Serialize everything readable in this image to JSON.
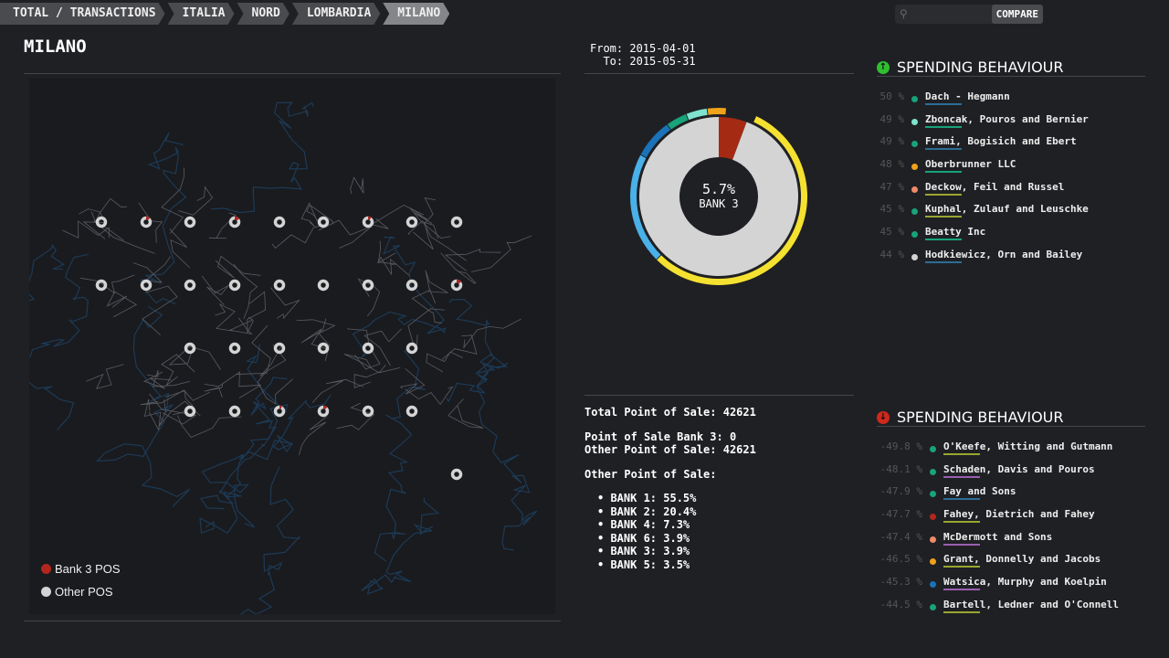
{
  "breadcrumb": [
    "TOTAL / TRANSACTIONS",
    "ITALIA",
    "NORD",
    "LOMBARDIA",
    "MILANO"
  ],
  "search": {
    "placeholder": "",
    "compare_label": "COMPARE",
    "icon": "search-icon"
  },
  "page_title": "MILANO",
  "date_range": {
    "from_label": "From:",
    "from": "2015-04-01",
    "to_label": "To:",
    "to": "2015-05-31"
  },
  "map": {
    "legend": [
      {
        "label": "Bank 3 POS",
        "color": "#b3261e"
      },
      {
        "label": "Other POS",
        "color": "#d4d4d4"
      }
    ]
  },
  "donut": {
    "center_value": "5.7%",
    "center_label": "BANK 3",
    "share": 5.7,
    "inner_colors": {
      "highlight": "#a52a14",
      "rest": "#d4d4d4"
    },
    "outer": [
      {
        "bank": "BANK 1",
        "value": 55.5,
        "color": "#f5e130"
      },
      {
        "bank": "BANK 2",
        "value": 20.4,
        "color": "#4ab0e8"
      },
      {
        "bank": "BANK 4",
        "value": 7.3,
        "color": "#1a72b8"
      },
      {
        "bank": "BANK 6",
        "value": 3.9,
        "color": "#18a37a"
      },
      {
        "bank": "BANK 3",
        "value": 3.9,
        "color": "#7fe3cf"
      },
      {
        "bank": "BANK 5",
        "value": 3.5,
        "color": "#f0a21b"
      }
    ]
  },
  "stats": {
    "total": "Total Point of Sale: 42621",
    "bank3": "Point of Sale Bank 3: 0",
    "other": "Other Point of Sale: 42621",
    "other_heading": "Other Point of Sale:",
    "banks": [
      "BANK 1: 55.5%",
      "BANK 2: 20.4%",
      "BANK 4: 7.3%",
      "BANK 6: 3.9%",
      "BANK 3: 3.9%",
      "BANK 5: 3.5%"
    ]
  },
  "top": {
    "title": "SPENDING BEHAVIOUR",
    "icon": "arrow-up-circle-icon",
    "color": "#2fbf2f",
    "items": [
      {
        "value": "50 %",
        "name": "Dach - Hegmann",
        "dot": "#18a37a",
        "underline": "#2c6d96"
      },
      {
        "value": "49 %",
        "name": "Zboncak, Pouros and Bernier",
        "dot": "#7fe3cf",
        "underline": "#18a37a"
      },
      {
        "value": "49 %",
        "name": "Frami, Bogisich and Ebert",
        "dot": "#18a37a",
        "underline": "#2c6d96"
      },
      {
        "value": "48 %",
        "name": "Oberbrunner LLC",
        "dot": "#f0a21b",
        "underline": "#18a37a"
      },
      {
        "value": "47 %",
        "name": "Deckow, Feil and Russel",
        "dot": "#f08a6a",
        "underline": "#9aa630"
      },
      {
        "value": "45 %",
        "name": "Kuphal, Zulauf and Leuschke",
        "dot": "#18a37a",
        "underline": "#9aa630"
      },
      {
        "value": "45 %",
        "name": "Beatty Inc",
        "dot": "#18a37a",
        "underline": "#18a37a"
      },
      {
        "value": "44 %",
        "name": "Hodkiewicz, Orn and Bailey",
        "dot": "#d4d4d4",
        "underline": "#2c6d96"
      }
    ]
  },
  "bottom": {
    "title": "SPENDING BEHAVIOUR",
    "icon": "arrow-down-circle-icon",
    "color": "#d0281e",
    "items": [
      {
        "value": "-49.8 %",
        "name": "O'Keefe, Witting and Gutmann",
        "dot": "#18a37a",
        "underline": "#9aa630"
      },
      {
        "value": "-48.1 %",
        "name": "Schaden, Davis and Pouros",
        "dot": "#18a37a",
        "underline": "#9a5fb0"
      },
      {
        "value": "-47.9 %",
        "name": "Fay and Sons",
        "dot": "#18a37a",
        "underline": "#2c6d96"
      },
      {
        "value": "-47.7 %",
        "name": "Fahey, Dietrich and Fahey",
        "dot": "#b3261e",
        "underline": "#9aa630"
      },
      {
        "value": "-47.4 %",
        "name": "McDermott and Sons",
        "dot": "#f08a6a",
        "underline": "#9a5fb0"
      },
      {
        "value": "-46.5 %",
        "name": "Grant, Donnelly and Jacobs",
        "dot": "#f0a21b",
        "underline": "#9aa630"
      },
      {
        "value": "-45.3 %",
        "name": "Watsica, Murphy and Koelpin",
        "dot": "#1a72b8",
        "underline": "#9a5fb0"
      },
      {
        "value": "-44.5 %",
        "name": "Bartell, Ledner and O'Connell",
        "dot": "#18a37a",
        "underline": "#9aa630"
      }
    ]
  }
}
